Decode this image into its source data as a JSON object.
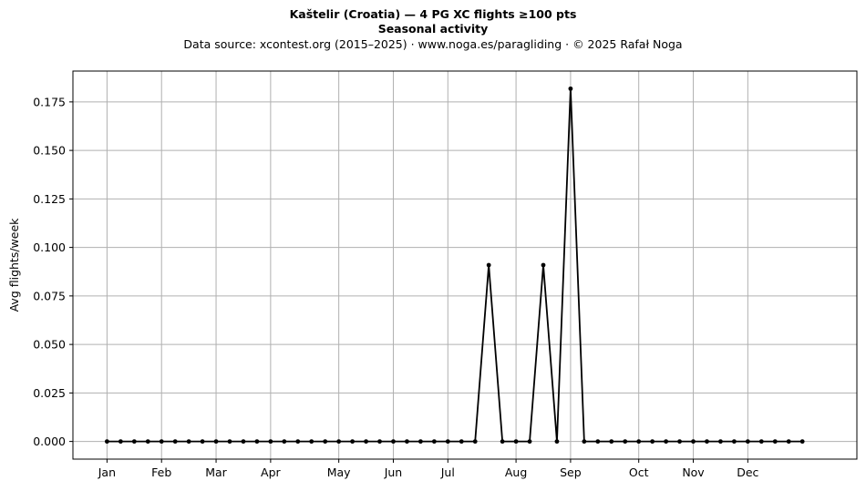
{
  "chart_data": {
    "type": "line",
    "title": "Kaštelir (Croatia)  —  4 PG XC flights ≥100 pts",
    "subtitle": "Seasonal activity",
    "source_line": "Data source: xcontest.org (2015–2025)  ·  www.noga.es/paragliding  ·  © 2025 Rafał Noga",
    "xlabel": "",
    "ylabel": "Avg flights/week",
    "ylim": [
      -0.0091,
      0.1909
    ],
    "xlim": [
      -2.5,
      55
    ],
    "grid": true,
    "line_color": "#000000",
    "grid_color": "#b0b0b0",
    "y_ticks": [
      0.0,
      0.025,
      0.05,
      0.075,
      0.1,
      0.125,
      0.15,
      0.175
    ],
    "y_tick_labels": [
      "0.000",
      "0.025",
      "0.050",
      "0.075",
      "0.100",
      "0.125",
      "0.150",
      "0.175"
    ],
    "x_ticks": [
      0,
      4,
      8,
      12,
      17,
      21,
      25,
      30,
      34,
      39,
      43,
      47
    ],
    "x_tick_labels": [
      "Jan",
      "Feb",
      "Mar",
      "Apr",
      "May",
      "Jun",
      "Jul",
      "Aug",
      "Sep",
      "Oct",
      "Nov",
      "Dec"
    ],
    "x": [
      0,
      1,
      2,
      3,
      4,
      5,
      6,
      7,
      8,
      9,
      10,
      11,
      12,
      13,
      14,
      15,
      16,
      17,
      18,
      19,
      20,
      21,
      22,
      23,
      24,
      25,
      26,
      27,
      28,
      29,
      30,
      31,
      32,
      33,
      34,
      35,
      36,
      37,
      38,
      39,
      40,
      41,
      42,
      43,
      44,
      45,
      46,
      47,
      48,
      49,
      50,
      51
    ],
    "values": [
      0,
      0,
      0,
      0,
      0,
      0,
      0,
      0,
      0,
      0,
      0,
      0,
      0,
      0,
      0,
      0,
      0,
      0,
      0,
      0,
      0,
      0,
      0,
      0,
      0,
      0,
      0,
      0,
      0.0909,
      0,
      0,
      0,
      0.0909,
      0,
      0.1818,
      0,
      0,
      0,
      0,
      0,
      0,
      0,
      0,
      0,
      0,
      0,
      0,
      0,
      0,
      0,
      0,
      0
    ]
  }
}
